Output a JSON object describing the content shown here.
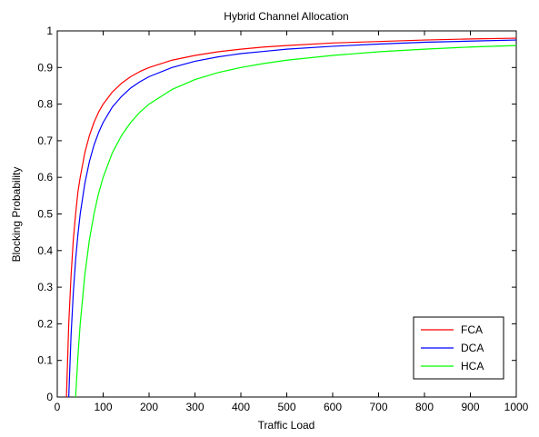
{
  "chart_data": {
    "type": "line",
    "title": "Hybrid Channel Allocation",
    "xlabel": "Traffic Load",
    "ylabel": "Blocking Probability",
    "xlim": [
      0,
      1000
    ],
    "ylim": [
      0,
      1
    ],
    "xticks": [
      0,
      100,
      200,
      300,
      400,
      500,
      600,
      700,
      800,
      900,
      1000
    ],
    "yticks": [
      0,
      0.1,
      0.2,
      0.3,
      0.4,
      0.5,
      0.6,
      0.7,
      0.8,
      0.9,
      1
    ],
    "ytick_labels": [
      "0",
      "0.1",
      "0.2",
      "0.3",
      "0.4",
      "0.5",
      "0.6",
      "0.7",
      "0.8",
      "0.9",
      "1"
    ],
    "grid": false,
    "legend_position": "bottom-right",
    "x": [
      20,
      25,
      30,
      35,
      40,
      45,
      50,
      60,
      70,
      80,
      90,
      100,
      120,
      140,
      160,
      180,
      200,
      250,
      300,
      350,
      400,
      450,
      500,
      600,
      700,
      800,
      900,
      1000
    ],
    "series": [
      {
        "name": "FCA",
        "color": "#ff0000",
        "values": [
          0.0,
          0.2,
          0.33,
          0.43,
          0.5,
          0.56,
          0.6,
          0.667,
          0.714,
          0.75,
          0.778,
          0.8,
          0.833,
          0.857,
          0.875,
          0.889,
          0.9,
          0.92,
          0.933,
          0.943,
          0.95,
          0.956,
          0.96,
          0.967,
          0.971,
          0.975,
          0.978,
          0.98
        ]
      },
      {
        "name": "DCA",
        "color": "#0000ff",
        "values": [
          null,
          0.0,
          0.167,
          0.286,
          0.375,
          0.444,
          0.5,
          0.583,
          0.643,
          0.688,
          0.722,
          0.75,
          0.792,
          0.821,
          0.844,
          0.861,
          0.875,
          0.9,
          0.917,
          0.929,
          0.938,
          0.944,
          0.95,
          0.958,
          0.964,
          0.969,
          0.972,
          0.975
        ]
      },
      {
        "name": "HCA",
        "color": "#00ff00",
        "values": [
          null,
          null,
          null,
          null,
          0.0,
          0.111,
          0.2,
          0.333,
          0.429,
          0.5,
          0.556,
          0.6,
          0.667,
          0.714,
          0.75,
          0.778,
          0.8,
          0.84,
          0.867,
          0.886,
          0.9,
          0.911,
          0.92,
          0.933,
          0.943,
          0.95,
          0.956,
          0.96
        ]
      }
    ]
  }
}
